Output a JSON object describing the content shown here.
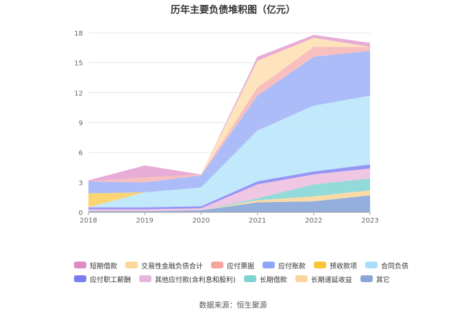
{
  "chart_data": {
    "type": "area",
    "title": "历年主要负债堆积图（亿元）",
    "categories": [
      "2018",
      "2019",
      "2020",
      "2021",
      "2022",
      "2023"
    ],
    "ylim": [
      0,
      18
    ],
    "yticks": [
      0,
      3,
      6,
      9,
      12,
      15,
      18
    ],
    "grid": true,
    "legend_position": "bottom",
    "series": [
      {
        "name": "其它",
        "color": "#8eaadb",
        "values": [
          0.1,
          0.1,
          0.2,
          1.0,
          1.1,
          1.7
        ]
      },
      {
        "name": "长期递延收益",
        "color": "#fad9a0",
        "values": [
          0.0,
          0.0,
          0.0,
          0.2,
          0.5,
          0.5
        ]
      },
      {
        "name": "长期借款",
        "color": "#8ed8d8",
        "values": [
          0.0,
          0.0,
          0.0,
          0.2,
          1.2,
          1.2
        ]
      },
      {
        "name": "其他应付款(含利息和股利)",
        "color": "#eec4e0",
        "values": [
          0.2,
          0.2,
          0.2,
          1.4,
          1.0,
          1.0
        ]
      },
      {
        "name": "应付职工薪酬",
        "color": "#8f8ff5",
        "values": [
          0.2,
          0.2,
          0.2,
          0.3,
          0.3,
          0.4
        ]
      },
      {
        "name": "合同负债",
        "color": "#bfe7fb",
        "values": [
          0.0,
          1.5,
          1.9,
          5.1,
          6.6,
          6.9
        ]
      },
      {
        "name": "预收款项",
        "color": "#fbd26b",
        "values": [
          1.4,
          0.0,
          0.0,
          0.0,
          0.0,
          0.0
        ]
      },
      {
        "name": "应付账款",
        "color": "#a6b8f8",
        "values": [
          1.2,
          1.0,
          1.2,
          3.5,
          4.9,
          4.5
        ]
      },
      {
        "name": "应付票据",
        "color": "#f8bcbc",
        "values": [
          0.0,
          0.5,
          0.1,
          0.8,
          1.0,
          0.4
        ]
      },
      {
        "name": "交易性金融负债合计",
        "color": "#fde3b8",
        "values": [
          0.0,
          0.0,
          0.0,
          2.7,
          0.9,
          0.0
        ]
      },
      {
        "name": "短期借款",
        "color": "#e7a8d4",
        "values": [
          0.1,
          1.2,
          0.0,
          0.4,
          0.3,
          0.4
        ]
      }
    ],
    "legend_rows": [
      [
        "短期借款",
        "交易性金融负债合计",
        "应付票据",
        "应付账款",
        "预收款项",
        "合同负债"
      ],
      [
        "应付职工薪酬",
        "其他应付款(含利息和股利)",
        "长期借款",
        "长期递延收益",
        "其它"
      ]
    ],
    "legend_colors": {
      "短期借款": "#e08ac3",
      "交易性金融负债合计": "#fcd79a",
      "应付票据": "#f6a49c",
      "应付账款": "#8ea6f8",
      "预收款项": "#fbc435",
      "合同负债": "#a7dffa",
      "应付职工薪酬": "#7b7cf0",
      "其他应付款(含利息和股利)": "#e6b6dc",
      "长期借款": "#7fd3d3",
      "长期递延收益": "#fbd59c",
      "其它": "#8aa6d6"
    }
  },
  "source": "数据来源：恒生聚源"
}
